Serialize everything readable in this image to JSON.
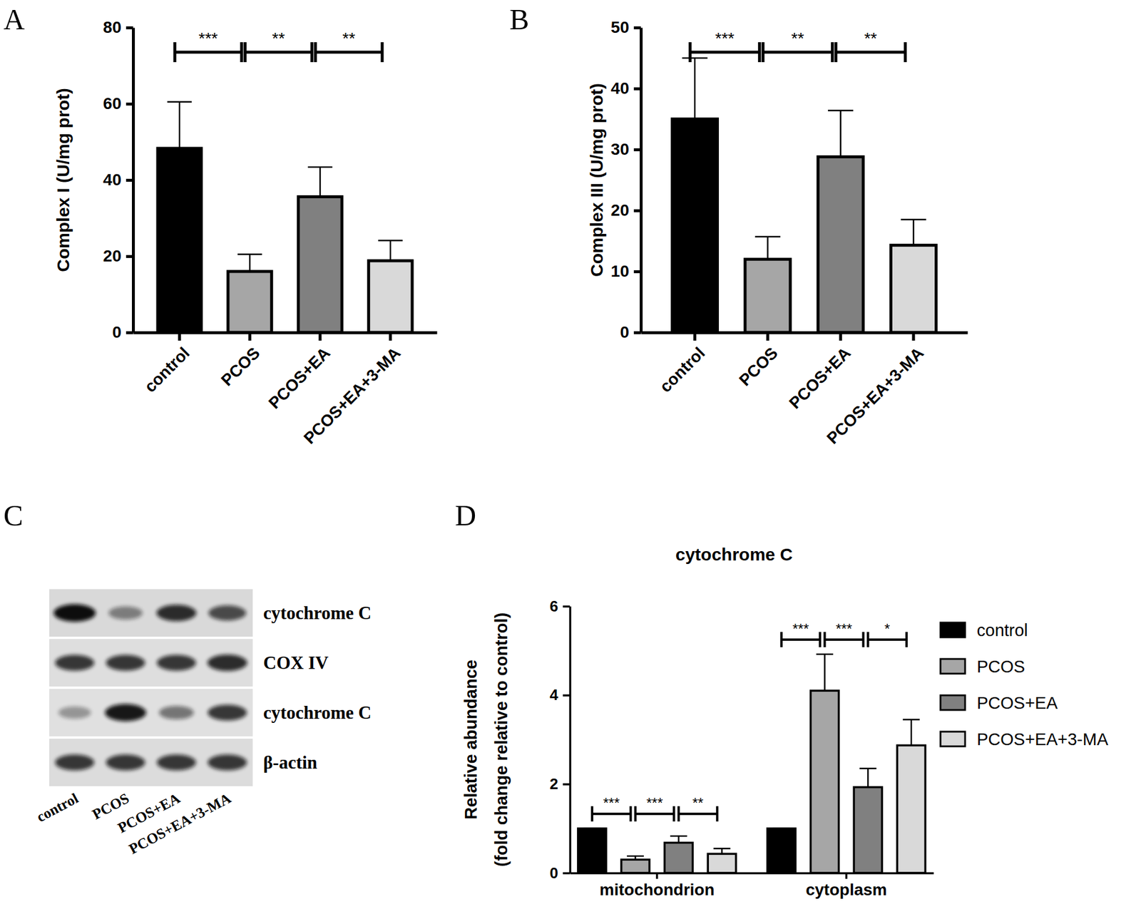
{
  "chart_data": [
    {
      "panel": "A",
      "type": "bar",
      "categories": [
        "control",
        "PCOS",
        "PCOS+EA",
        "PCOS+EA+3-MA"
      ],
      "values": [
        48.3,
        16,
        35.6,
        18.8
      ],
      "errors": [
        12.2,
        4.5,
        7.8,
        5.3
      ],
      "colors": [
        "#000000",
        "#a6a6a6",
        "#808080",
        "#d9d9d9"
      ],
      "y_label": "Complex I (U/mg prot)",
      "ylim": [
        0,
        80
      ],
      "yticks": [
        0,
        20,
        40,
        60,
        80
      ],
      "annotations": [
        {
          "between": [
            "control",
            "PCOS"
          ],
          "text": "***"
        },
        {
          "between": [
            "PCOS",
            "PCOS+EA"
          ],
          "text": "**"
        },
        {
          "between": [
            "PCOS+EA",
            "PCOS+EA+3-MA"
          ],
          "text": "**"
        }
      ]
    },
    {
      "panel": "B",
      "type": "bar",
      "categories": [
        "control",
        "PCOS",
        "PCOS+EA",
        "PCOS+EA+3-MA"
      ],
      "values": [
        35,
        12,
        28.8,
        14.3
      ],
      "errors": [
        10,
        3.7,
        7.6,
        4.2
      ],
      "colors": [
        "#000000",
        "#a6a6a6",
        "#808080",
        "#d9d9d9"
      ],
      "y_label": "Complex III (U/mg prot)",
      "ylim": [
        0,
        50
      ],
      "yticks": [
        0,
        10,
        20,
        30,
        40,
        50
      ],
      "annotations": [
        {
          "between": [
            "control",
            "PCOS"
          ],
          "text": "***"
        },
        {
          "between": [
            "PCOS",
            "PCOS+EA"
          ],
          "text": "**"
        },
        {
          "between": [
            "PCOS+EA",
            "PCOS+EA+3-MA"
          ],
          "text": "**"
        }
      ]
    },
    {
      "panel": "C",
      "type": "blot",
      "rows": [
        "cytochrome C",
        "COX IV",
        "cytochrome C",
        "β-actin"
      ],
      "lanes": [
        "control",
        "PCOS",
        "PCOS+EA",
        "PCOS+EA+3-MA"
      ],
      "intensities": [
        [
          1.0,
          0.45,
          0.85,
          0.7
        ],
        [
          0.8,
          0.8,
          0.8,
          0.85
        ],
        [
          0.35,
          0.95,
          0.5,
          0.8
        ],
        [
          0.8,
          0.8,
          0.8,
          0.8
        ]
      ]
    },
    {
      "panel": "D",
      "type": "bar",
      "title": "cytochrome C",
      "y_label": [
        "Relative abundance",
        "(fold change relative to control)"
      ],
      "categories": [
        "mitochondrion",
        "cytoplasm"
      ],
      "series": [
        {
          "name": "control",
          "color": "#000000",
          "values": [
            1,
            1
          ],
          "errors": [
            0,
            0
          ]
        },
        {
          "name": "PCOS",
          "color": "#a6a6a6",
          "values": [
            0.3,
            4.1
          ],
          "errors": [
            0.08,
            0.82
          ]
        },
        {
          "name": "PCOS+EA",
          "color": "#808080",
          "values": [
            0.68,
            1.93
          ],
          "errors": [
            0.15,
            0.42
          ]
        },
        {
          "name": "PCOS+EA+3-MA",
          "color": "#d9d9d9",
          "values": [
            0.43,
            2.87
          ],
          "errors": [
            0.12,
            0.58
          ]
        }
      ],
      "ylim": [
        0,
        6
      ],
      "yticks": [
        0,
        2,
        4,
        6
      ],
      "legend": "right",
      "annotations": [
        {
          "category": "mitochondrion",
          "between": [
            "control",
            "PCOS"
          ],
          "text": "***"
        },
        {
          "category": "mitochondrion",
          "between": [
            "PCOS",
            "PCOS+EA"
          ],
          "text": "***"
        },
        {
          "category": "mitochondrion",
          "between": [
            "PCOS+EA",
            "PCOS+EA+3-MA"
          ],
          "text": "**"
        },
        {
          "category": "cytoplasm",
          "between": [
            "control",
            "PCOS"
          ],
          "text": "***"
        },
        {
          "category": "cytoplasm",
          "between": [
            "PCOS",
            "PCOS+EA"
          ],
          "text": "***"
        },
        {
          "category": "cytoplasm",
          "between": [
            "PCOS+EA",
            "PCOS+EA+3-MA"
          ],
          "text": "*"
        }
      ]
    }
  ]
}
